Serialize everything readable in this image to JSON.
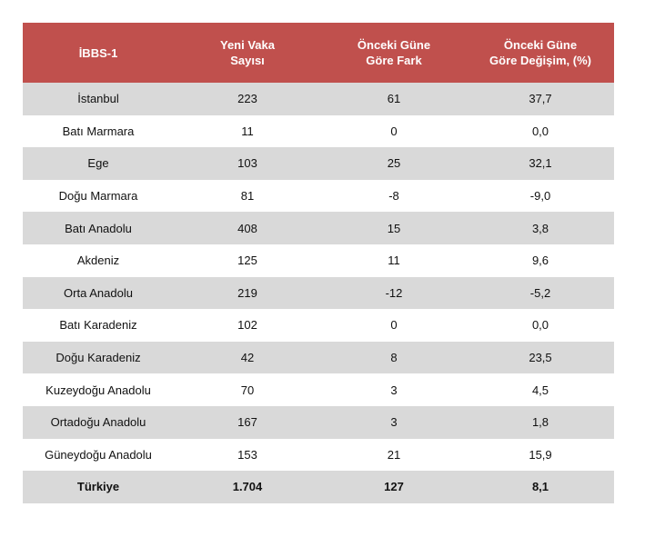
{
  "header": {
    "col1": "İBBS-1",
    "col2_line1": "Yeni Vaka",
    "col2_line2": "Sayısı",
    "col3_line1": "Önceki Güne",
    "col3_line2": "Göre Fark",
    "col4_line1": "Önceki Güne",
    "col4_line2": "Göre Değişim, (%)"
  },
  "colors": {
    "header_bg": "#c0504d",
    "shaded_row_bg": "#d9d9d9"
  },
  "rows": [
    {
      "region": "İstanbul",
      "cases": "223",
      "diff": "61",
      "change": "37,7"
    },
    {
      "region": "Batı Marmara",
      "cases": "11",
      "diff": "0",
      "change": "0,0"
    },
    {
      "region": "Ege",
      "cases": "103",
      "diff": "25",
      "change": "32,1"
    },
    {
      "region": "Doğu Marmara",
      "cases": "81",
      "diff": "-8",
      "change": "-9,0"
    },
    {
      "region": "Batı Anadolu",
      "cases": "408",
      "diff": "15",
      "change": "3,8"
    },
    {
      "region": "Akdeniz",
      "cases": "125",
      "diff": "11",
      "change": "9,6"
    },
    {
      "region": "Orta Anadolu",
      "cases": "219",
      "diff": "-12",
      "change": "-5,2"
    },
    {
      "region": "Batı Karadeniz",
      "cases": "102",
      "diff": "0",
      "change": "0,0"
    },
    {
      "region": "Doğu Karadeniz",
      "cases": "42",
      "diff": "8",
      "change": "23,5"
    },
    {
      "region": "Kuzeydoğu Anadolu",
      "cases": "70",
      "diff": "3",
      "change": "4,5"
    },
    {
      "region": "Ortadoğu Anadolu",
      "cases": "167",
      "diff": "3",
      "change": "1,8"
    },
    {
      "region": "Güneydoğu Anadolu",
      "cases": "153",
      "diff": "21",
      "change": "15,9"
    }
  ],
  "total": {
    "region": "Türkiye",
    "cases": "1.704",
    "diff": "127",
    "change": "8,1"
  }
}
